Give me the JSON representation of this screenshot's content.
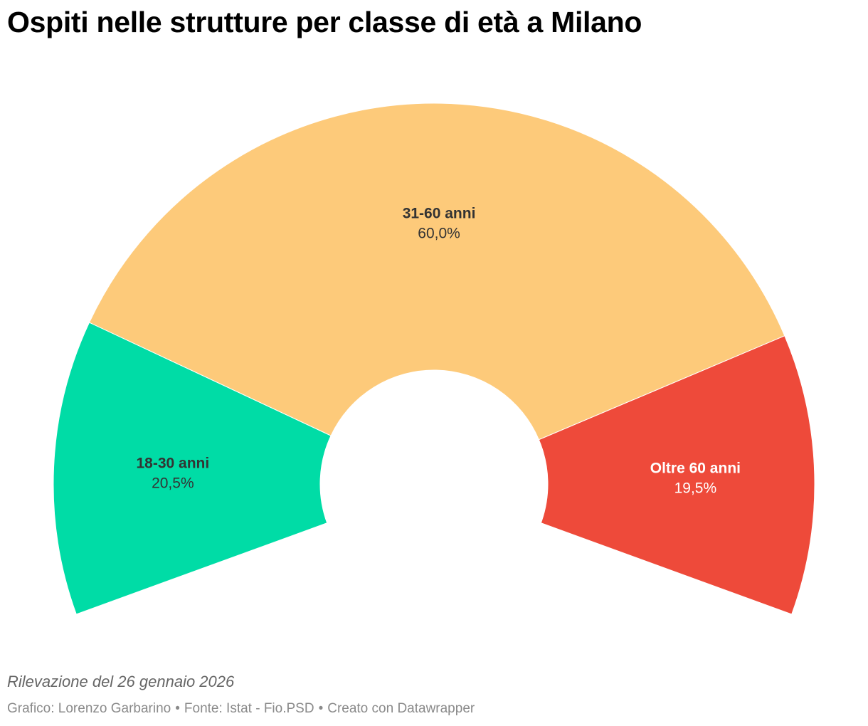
{
  "title": "Ospiti nelle strutture per classe di età a Milano",
  "notes": "Rilevazione del 26 gennaio 2026",
  "credits": {
    "chart_by": "Grafico: Lorenzo Garbarino",
    "source": "Fonte: Istat - Fio.PSD",
    "tool": "Creato con Datawrapper",
    "separator": "•"
  },
  "chart_data": {
    "type": "pie",
    "subtype": "semi-donut",
    "title": "Ospiti nelle strutture per classe di età a Milano",
    "slices": [
      {
        "label": "18-30 anni",
        "value": 20.5,
        "value_label": "20,5%",
        "color": "#00dca6",
        "text_color": "#333333"
      },
      {
        "label": "31-60 anni",
        "value": 60.0,
        "value_label": "60,0%",
        "color": "#fdca7a",
        "text_color": "#333333"
      },
      {
        "label": "Oltre 60 anni",
        "value": 19.5,
        "value_label": "19,5%",
        "color": "#ee4a3a",
        "text_color": "#ffffff"
      }
    ]
  }
}
